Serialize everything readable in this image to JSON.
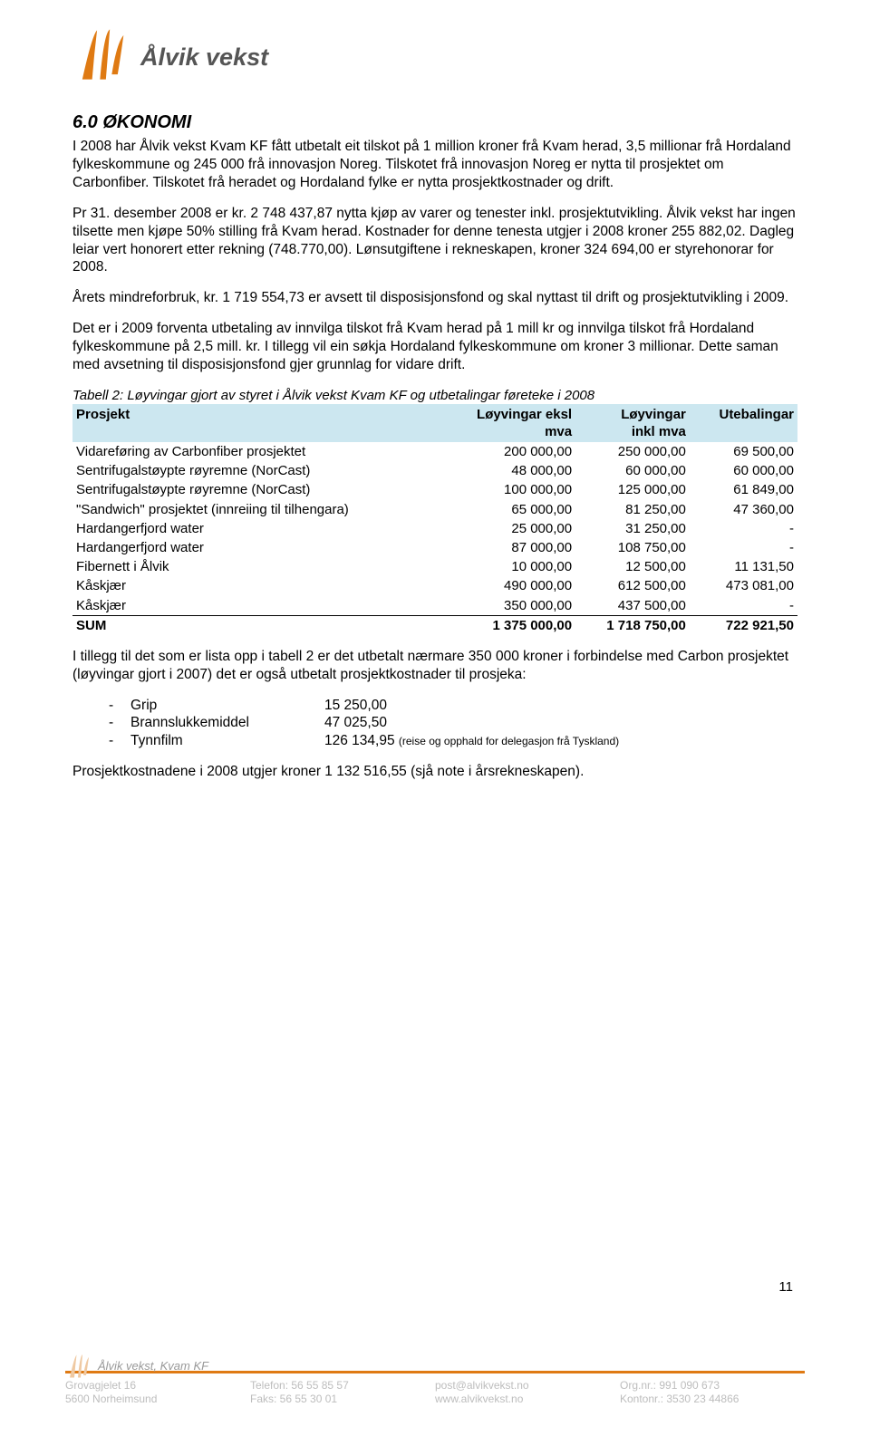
{
  "brand": {
    "name": "Ålvik vekst",
    "footer_name": "Ålvik vekst, Kvam KF"
  },
  "section": {
    "title": "6.0   ØKONOMI",
    "p1": "I 2008 har Ålvik vekst Kvam KF fått utbetalt eit tilskot på 1 million kroner frå Kvam herad, 3,5 millionar frå Hordaland fylkeskommune og 245 000 frå innovasjon Noreg. Tilskotet frå innovasjon Noreg er nytta til prosjektet om Carbonfiber. Tilskotet frå heradet og Hordaland fylke er nytta prosjektkostnader og drift.",
    "p2": "Pr 31. desember 2008 er kr. 2 748 437,87 nytta kjøp av varer og tenester inkl. prosjektutvikling. Ålvik vekst har ingen tilsette men kjøpe 50% stilling frå Kvam herad. Kostnader for denne tenesta utgjer i 2008 kroner 255 882,02. Dagleg leiar vert honorert etter rekning (748.770,00). Lønsutgiftene i rekneskapen, kroner 324 694,00 er styrehonorar for 2008.",
    "p3": "Årets mindreforbruk, kr. 1 719 554,73 er avsett til disposisjonsfond og skal nyttast til drift og prosjektutvikling i 2009.",
    "p4": "Det er i 2009 forventa utbetaling av innvilga tilskot frå Kvam herad på 1 mill kr og innvilga tilskot frå Hordaland fylkeskommune på 2,5 mill. kr. I tillegg vil ein søkja Hordaland fylkeskommune om kroner 3 millionar. Dette saman med avsetning til disposisjonsfond gjer grunnlag for vidare drift.",
    "table_caption": "Tabell 2: Løyvingar gjort av styret i Ålvik vekst Kvam KF og utbetalingar føreteke i 2008",
    "p5": "I tillegg til det som er lista opp i tabell 2 er det utbetalt nærmare 350 000 kroner i forbindelse med Carbon prosjektet (løyvingar gjort i 2007) det er også utbetalt prosjektkostnader til prosjeka:",
    "p6": "Prosjektkostnadene i 2008 utgjer kroner 1 132 516,55 (sjå note i årsrekneskapen)."
  },
  "table": {
    "headers": {
      "c1": "Prosjekt",
      "c2a": "Løyvingar eksl",
      "c2b": "mva",
      "c3a": "Løyvingar",
      "c3b": "inkl mva",
      "c4": "Utebalingar"
    },
    "rows": [
      {
        "c1": "Vidareføring av Carbonfiber prosjektet",
        "c2": "200 000,00",
        "c3": "250 000,00",
        "c4": "69 500,00"
      },
      {
        "c1": "Sentrifugalstøypte røyremne (NorCast)",
        "c2": "48 000,00",
        "c3": "60 000,00",
        "c4": "60 000,00"
      },
      {
        "c1": "Sentrifugalstøypte røyremne (NorCast)",
        "c2": "100 000,00",
        "c3": "125 000,00",
        "c4": "61 849,00"
      },
      {
        "c1": "\"Sandwich\" prosjektet (innreiing til tilhengara)",
        "c2": "65 000,00",
        "c3": "81 250,00",
        "c4": "47 360,00"
      },
      {
        "c1": "Hardangerfjord water",
        "c2": "25 000,00",
        "c3": "31 250,00",
        "c4": "-"
      },
      {
        "c1": "Hardangerfjord water",
        "c2": "87 000,00",
        "c3": "108 750,00",
        "c4": "-"
      },
      {
        "c1": "Fibernett i Ålvik",
        "c2": "10 000,00",
        "c3": "12 500,00",
        "c4": "11 131,50"
      },
      {
        "c1": "Kåskjær",
        "c2": "490 000,00",
        "c3": "612 500,00",
        "c4": "473 081,00"
      },
      {
        "c1": "Kåskjær",
        "c2": "350 000,00",
        "c3": "437 500,00",
        "c4": "-"
      }
    ],
    "sum": {
      "c1": "SUM",
      "c2": "1 375 000,00",
      "c3": "1 718 750,00",
      "c4": "722 921,50"
    }
  },
  "bullets": [
    {
      "name": "Grip",
      "val": "15 250,00",
      "note": ""
    },
    {
      "name": "Brannslukkemiddel",
      "val": "47 025,50",
      "note": ""
    },
    {
      "name": "Tynnfilm",
      "val": "126 134,95",
      "note": "(reise og opphald for delegasjon frå Tyskland)"
    }
  ],
  "footer": {
    "addr1": "Grovagjelet 16",
    "addr2": "5600 Norheimsund",
    "tel": "Telefon: 56 55 85 57",
    "fax": "Faks: 56 55 30 01",
    "email": "post@alvikvekst.no",
    "web": "www.alvikvekst.no",
    "org": "Org.nr.: 991 090 673",
    "konto": "Kontonr.: 3530 23 44866"
  },
  "page_number": "11",
  "colors": {
    "brand_orange": "#df7a13",
    "table_header_bg": "#cce7f0",
    "footer_text": "#bdbdbd"
  }
}
